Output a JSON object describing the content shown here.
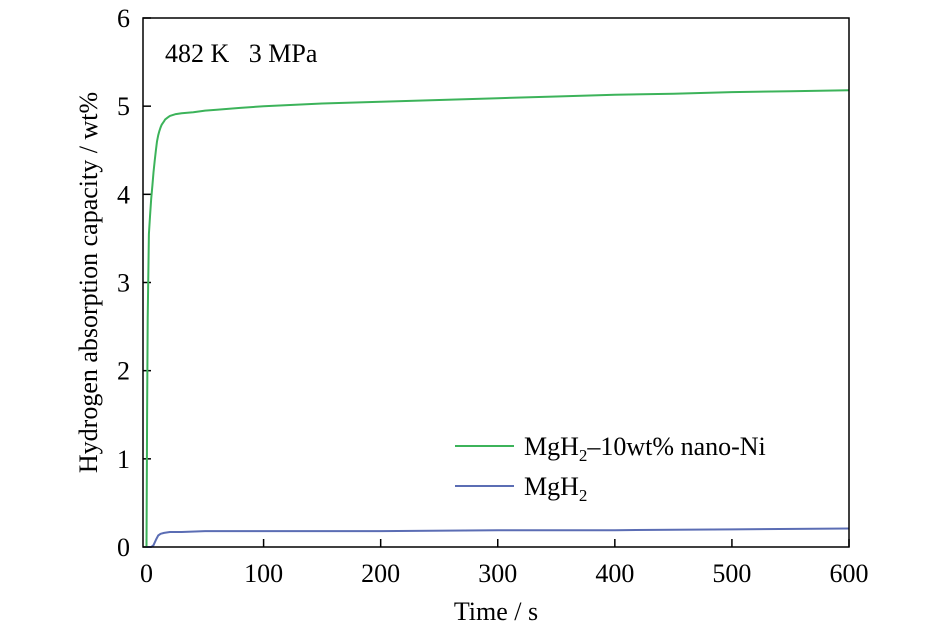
{
  "chart_data": {
    "type": "line",
    "title": "",
    "annotation": "482 K   3 MPa",
    "xlabel": "Time / s",
    "ylabel": "Hydrogen absorption capacity / wt%",
    "xlim": [
      -3,
      600
    ],
    "ylim": [
      0,
      6
    ],
    "xticks": [
      0,
      100,
      200,
      300,
      400,
      500,
      600
    ],
    "yticks": [
      0,
      1,
      2,
      3,
      4,
      5,
      6
    ],
    "grid": false,
    "legend_position": "lower-right",
    "series": [
      {
        "name": "MgH₂–10wt% nano-Ni",
        "legend_main": "MgH",
        "legend_sub": "2",
        "legend_tail": "–10wt% nano-Ni",
        "color": "#3cb35a",
        "x": [
          0,
          0.5,
          1,
          2,
          3,
          4,
          5,
          6,
          7,
          8,
          9,
          10,
          11,
          12,
          13,
          14,
          15,
          16,
          18,
          20,
          25,
          30,
          40,
          50,
          60,
          80,
          100,
          150,
          200,
          250,
          300,
          350,
          400,
          450,
          500,
          550,
          600
        ],
        "y": [
          0.0,
          1.5,
          2.6,
          3.55,
          3.75,
          3.95,
          4.1,
          4.25,
          4.38,
          4.5,
          4.6,
          4.67,
          4.72,
          4.76,
          4.79,
          4.81,
          4.83,
          4.85,
          4.87,
          4.89,
          4.91,
          4.92,
          4.93,
          4.95,
          4.96,
          4.98,
          5.0,
          5.03,
          5.05,
          5.07,
          5.09,
          5.11,
          5.13,
          5.14,
          5.16,
          5.17,
          5.18
        ]
      },
      {
        "name": "MgH₂",
        "legend_main": "MgH",
        "legend_sub": "2",
        "legend_tail": "",
        "color": "#5b6db4",
        "x": [
          0,
          4,
          6,
          8,
          10,
          12,
          15,
          20,
          30,
          50,
          100,
          150,
          200,
          300,
          400,
          500,
          600
        ],
        "y": [
          0.0,
          0.0,
          0.02,
          0.08,
          0.13,
          0.15,
          0.16,
          0.17,
          0.17,
          0.18,
          0.18,
          0.18,
          0.18,
          0.19,
          0.19,
          0.2,
          0.21
        ]
      }
    ]
  }
}
